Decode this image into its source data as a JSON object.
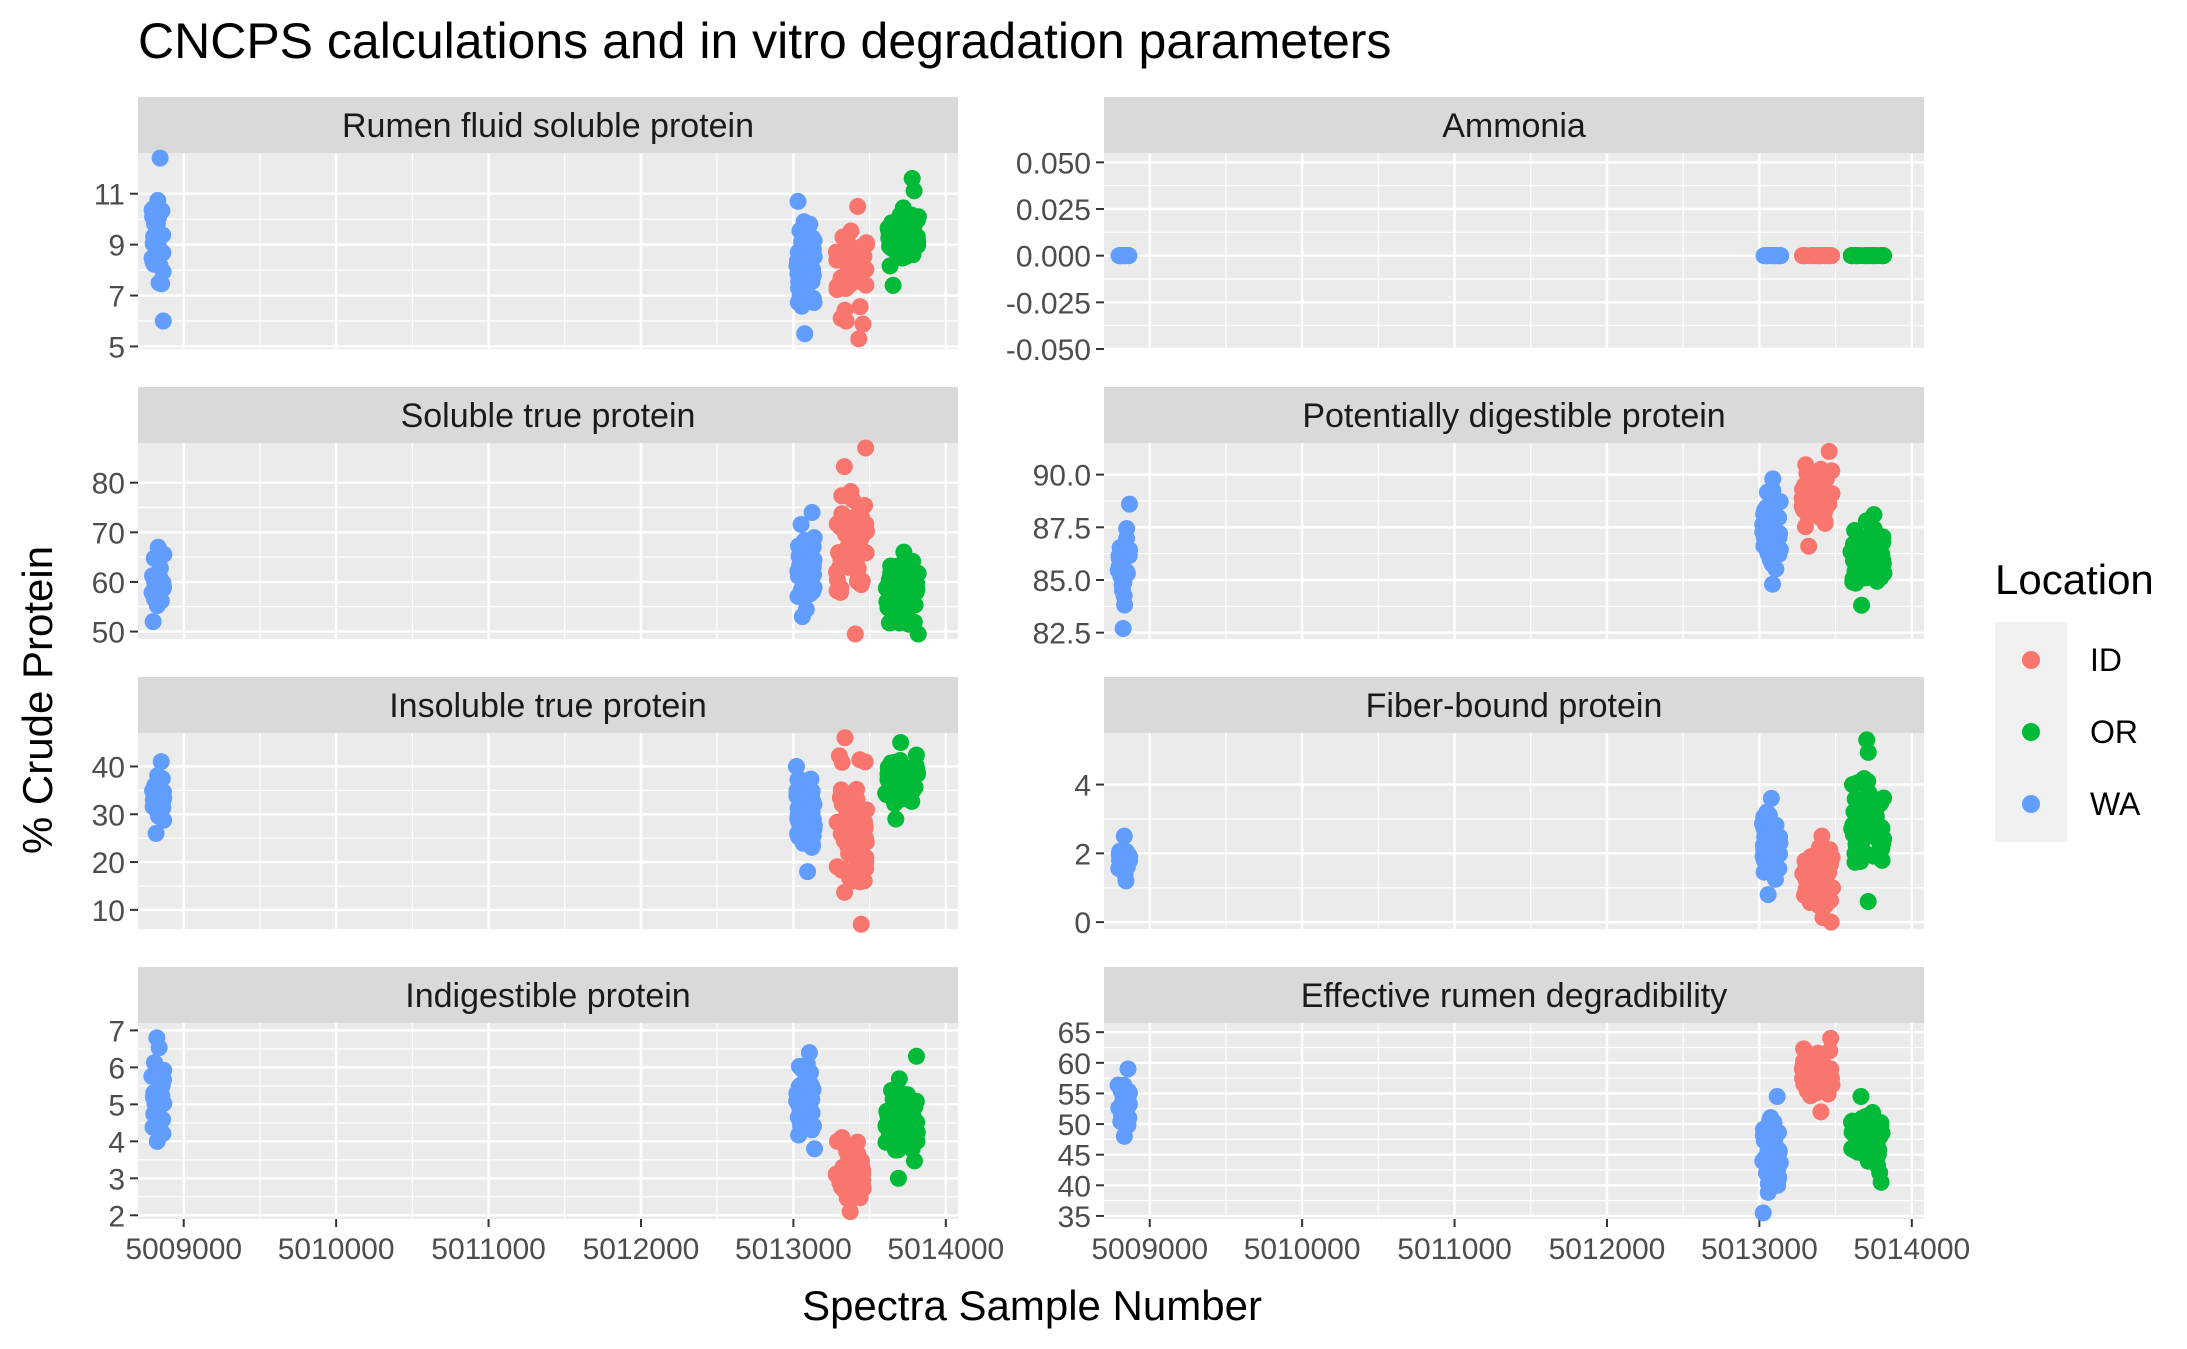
{
  "chart_data": {
    "type": "scatter",
    "title": "CNCPS calculations and in vitro degradation parameters",
    "xlabel": "Spectra Sample Number",
    "ylabel": "% Crude Protein",
    "xlim": [
      5008700,
      5014080
    ],
    "x_ticks": [
      5009000,
      5010000,
      5011000,
      5012000,
      5013000,
      5014000
    ],
    "x_tick_labels": [
      "5009000",
      "5010000",
      "5011000",
      "5012000",
      "5013000",
      "5014000"
    ],
    "legend": {
      "title": "Location",
      "placement": "right",
      "entries": [
        {
          "name": "ID",
          "color": "#F8766D"
        },
        {
          "name": "OR",
          "color": "#00BA38"
        },
        {
          "name": "WA",
          "color": "#619CFF"
        }
      ]
    },
    "series_groups": {
      "WA_early": {
        "location": "WA",
        "x_range": [
          5008790,
          5008870
        ]
      },
      "WA_late": {
        "location": "WA",
        "x_range": [
          5013020,
          5013140
        ]
      },
      "ID": {
        "location": "ID",
        "x_range": [
          5013280,
          5013480
        ]
      },
      "OR": {
        "location": "OR",
        "x_range": [
          5013600,
          5013820
        ]
      }
    },
    "panels": [
      {
        "title": "Rumen fluid soluble protein",
        "ylim": [
          4.9,
          12.6
        ],
        "y_ticks": [
          5,
          7,
          9,
          11
        ],
        "y_tick_labels": [
          "5",
          "7",
          "9",
          "11"
        ],
        "groups": {
          "WA_early": {
            "range": [
              6.0,
              12.4
            ],
            "n": 28
          },
          "WA_late": {
            "range": [
              5.5,
              10.7
            ],
            "n": 55
          },
          "ID": {
            "range": [
              5.3,
              10.5
            ],
            "n": 45
          },
          "OR": {
            "range": [
              7.4,
              11.6
            ],
            "n": 55
          }
        }
      },
      {
        "title": "Ammonia",
        "ylim": [
          -0.05,
          0.055
        ],
        "y_ticks": [
          -0.05,
          -0.025,
          0,
          0.025,
          0.05
        ],
        "y_tick_labels": [
          "-0.050",
          "-0.025",
          "0.000",
          "0.025",
          "0.050"
        ],
        "groups": {
          "WA_early": {
            "range": [
              0,
              0
            ],
            "n": 15
          },
          "WA_late": {
            "range": [
              0,
              0
            ],
            "n": 25
          },
          "ID": {
            "range": [
              0,
              0
            ],
            "n": 30
          },
          "OR": {
            "range": [
              0,
              0
            ],
            "n": 30
          }
        }
      },
      {
        "title": "Soluble true protein",
        "ylim": [
          48.5,
          88
        ],
        "y_ticks": [
          50,
          60,
          70,
          80
        ],
        "y_tick_labels": [
          "50",
          "60",
          "70",
          "80"
        ],
        "groups": {
          "WA_early": {
            "range": [
              52,
              67
            ],
            "n": 28
          },
          "WA_late": {
            "range": [
              53,
              74
            ],
            "n": 55
          },
          "ID": {
            "range": [
              49.5,
              87
            ],
            "n": 55
          },
          "OR": {
            "range": [
              49.5,
              66
            ],
            "n": 60
          }
        }
      },
      {
        "title": "Potentially digestible protein",
        "ylim": [
          82.2,
          91.5
        ],
        "y_ticks": [
          82.5,
          85,
          87.5,
          90
        ],
        "y_tick_labels": [
          "82.5",
          "85.0",
          "87.5",
          "90.0"
        ],
        "groups": {
          "WA_early": {
            "range": [
              82.7,
              88.6
            ],
            "n": 26
          },
          "WA_late": {
            "range": [
              84.8,
              89.8
            ],
            "n": 50
          },
          "ID": {
            "range": [
              86.6,
              91.1
            ],
            "n": 45
          },
          "OR": {
            "range": [
              83.8,
              88.1
            ],
            "n": 55
          }
        }
      },
      {
        "title": "Insoluble true protein",
        "ylim": [
          6,
          47
        ],
        "y_ticks": [
          10,
          20,
          30,
          40
        ],
        "y_tick_labels": [
          "10",
          "20",
          "30",
          "40"
        ],
        "groups": {
          "WA_early": {
            "range": [
              26,
              41
            ],
            "n": 28
          },
          "WA_late": {
            "range": [
              18,
              40
            ],
            "n": 55
          },
          "ID": {
            "range": [
              7,
              46
            ],
            "n": 55
          },
          "OR": {
            "range": [
              29,
              45
            ],
            "n": 60
          }
        }
      },
      {
        "title": "Fiber-bound protein",
        "ylim": [
          -0.2,
          5.5
        ],
        "y_ticks": [
          0,
          2,
          4
        ],
        "y_tick_labels": [
          "0",
          "2",
          "4"
        ],
        "groups": {
          "WA_early": {
            "range": [
              1.2,
              2.5
            ],
            "n": 26
          },
          "WA_late": {
            "range": [
              0.8,
              3.6
            ],
            "n": 50
          },
          "ID": {
            "range": [
              0,
              2.5
            ],
            "n": 55
          },
          "OR": {
            "range": [
              0.6,
              5.3
            ],
            "n": 60
          }
        }
      },
      {
        "title": "Indigestible protein",
        "ylim": [
          1.9,
          7.2
        ],
        "y_ticks": [
          2,
          3,
          4,
          5,
          6,
          7
        ],
        "y_tick_labels": [
          "2",
          "3",
          "4",
          "5",
          "6",
          "7"
        ],
        "groups": {
          "WA_early": {
            "range": [
              4.0,
              6.8
            ],
            "n": 28
          },
          "WA_late": {
            "range": [
              3.8,
              6.4
            ],
            "n": 50
          },
          "ID": {
            "range": [
              2.1,
              4.1
            ],
            "n": 50
          },
          "OR": {
            "range": [
              3.0,
              6.3
            ],
            "n": 60
          }
        }
      },
      {
        "title": "Effective rumen degradibility",
        "ylim": [
          34.5,
          66.5
        ],
        "y_ticks": [
          35,
          40,
          45,
          50,
          55,
          60,
          65
        ],
        "y_tick_labels": [
          "35",
          "40",
          "45",
          "50",
          "55",
          "60",
          "65"
        ],
        "groups": {
          "WA_early": {
            "range": [
              48,
              59
            ],
            "n": 28
          },
          "WA_late": {
            "range": [
              35.5,
              54.5
            ],
            "n": 50
          },
          "ID": {
            "range": [
              52,
              64
            ],
            "n": 45
          },
          "OR": {
            "range": [
              40.5,
              54.5
            ],
            "n": 55
          }
        }
      }
    ]
  }
}
